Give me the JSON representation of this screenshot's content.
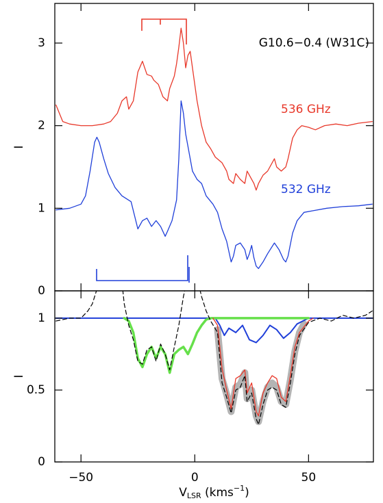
{
  "chart_data": [
    {
      "type": "line",
      "ylabel": "I",
      "annotation": "G10.6−0.4 (W31C)",
      "xlim": [
        -61.5,
        78.5
      ],
      "ylim": [
        0,
        3.48
      ],
      "xticks": [
        -50,
        0,
        50
      ],
      "yticks": [
        0,
        1,
        2,
        3
      ],
      "series": [
        {
          "name": "536 GHz",
          "color": "#e8382a",
          "x": [
            -61,
            -58,
            -55,
            -50,
            -45,
            -40,
            -37,
            -34,
            -32,
            -30,
            -29,
            -27,
            -25,
            -23,
            -21,
            -19,
            -18,
            -16,
            -14,
            -12,
            -11,
            -9,
            -8,
            -7,
            -6,
            -5,
            -4,
            -3,
            -2,
            -1,
            1,
            3,
            5,
            7,
            9,
            12,
            14,
            15,
            17,
            18,
            20,
            22,
            23,
            25,
            26,
            27,
            28,
            30,
            32,
            34,
            35,
            36,
            38,
            40,
            41,
            43,
            45,
            47,
            50,
            53,
            57,
            62,
            67,
            72,
            78
          ],
          "values": [
            2.25,
            2.05,
            2.02,
            2.0,
            2.0,
            2.02,
            2.05,
            2.15,
            2.3,
            2.35,
            2.2,
            2.3,
            2.65,
            2.78,
            2.62,
            2.6,
            2.55,
            2.5,
            2.35,
            2.3,
            2.45,
            2.6,
            2.75,
            2.95,
            3.18,
            3.0,
            2.7,
            2.85,
            2.9,
            2.7,
            2.3,
            2.0,
            1.8,
            1.72,
            1.62,
            1.55,
            1.45,
            1.35,
            1.3,
            1.42,
            1.35,
            1.3,
            1.45,
            1.35,
            1.3,
            1.22,
            1.3,
            1.4,
            1.45,
            1.55,
            1.6,
            1.5,
            1.45,
            1.5,
            1.6,
            1.85,
            1.95,
            2.0,
            1.98,
            1.95,
            2.0,
            2.02,
            2.0,
            2.03,
            2.05
          ]
        },
        {
          "name": "532 GHz",
          "color": "#1f3fd9",
          "x": [
            -61,
            -55,
            -50,
            -48,
            -46,
            -44,
            -43,
            -42,
            -40,
            -38,
            -35,
            -32,
            -28,
            -25,
            -23,
            -21,
            -19,
            -17,
            -15,
            -13,
            -12,
            -10,
            -8,
            -7,
            -6,
            -5,
            -4,
            -3,
            -2,
            -1,
            1,
            3,
            5,
            8,
            10,
            12,
            14,
            16,
            17,
            18,
            20,
            22,
            23,
            24,
            25,
            26,
            27,
            28,
            30,
            32,
            35,
            37,
            39,
            40,
            41,
            43,
            45,
            48,
            52,
            58,
            65,
            72,
            78
          ],
          "values": [
            0.98,
            1.0,
            1.05,
            1.15,
            1.45,
            1.8,
            1.86,
            1.8,
            1.6,
            1.42,
            1.25,
            1.15,
            1.08,
            0.75,
            0.85,
            0.88,
            0.78,
            0.85,
            0.78,
            0.66,
            0.72,
            0.85,
            1.1,
            1.6,
            2.3,
            2.15,
            1.9,
            1.75,
            1.6,
            1.45,
            1.35,
            1.3,
            1.15,
            1.05,
            0.95,
            0.75,
            0.6,
            0.35,
            0.42,
            0.55,
            0.58,
            0.5,
            0.38,
            0.45,
            0.55,
            0.4,
            0.3,
            0.27,
            0.35,
            0.45,
            0.58,
            0.5,
            0.38,
            0.35,
            0.42,
            0.7,
            0.85,
            0.95,
            0.97,
            1.0,
            1.02,
            1.03,
            1.05
          ]
        }
      ]
    },
    {
      "type": "line",
      "ylabel": "I",
      "xlabel_parts": [
        "V",
        "LSR",
        " (kms",
        "−1",
        ")"
      ],
      "xlim": [
        -61.5,
        78.5
      ],
      "ylim": [
        0,
        1.19
      ],
      "xticks": [
        {
          "value": -50,
          "label": "−50"
        },
        0,
        50
      ],
      "yticks": [
        0,
        0.5,
        1
      ],
      "series": [
        {
          "color": "#b4b4b4",
          "linewidth": 10,
          "x": [
            10,
            12,
            14,
            16,
            18,
            20,
            22,
            23,
            25,
            27,
            28,
            30,
            32,
            34,
            36,
            38,
            40,
            42,
            44,
            46,
            48
          ],
          "values": [
            0.92,
            0.58,
            0.47,
            0.35,
            0.52,
            0.54,
            0.62,
            0.44,
            0.5,
            0.32,
            0.28,
            0.42,
            0.52,
            0.55,
            0.52,
            0.42,
            0.4,
            0.57,
            0.77,
            0.9,
            0.96
          ]
        },
        {
          "color": "#1f3fd9",
          "linewidth": 2,
          "x": [
            -61,
            -10,
            9,
            11,
            13,
            15,
            18,
            21,
            24,
            27,
            30,
            33,
            36,
            39,
            42,
            45,
            50,
            60,
            78
          ],
          "values": [
            1,
            1,
            1,
            0.95,
            0.88,
            0.93,
            0.9,
            0.95,
            0.85,
            0.83,
            0.88,
            0.95,
            0.92,
            0.86,
            0.9,
            0.96,
            1,
            1,
            1
          ]
        },
        {
          "color": "#66e04a",
          "linewidth": 3.5,
          "x": [
            -31,
            -29,
            -27,
            -25,
            -23,
            -21,
            -19,
            -17,
            -15,
            -13,
            -11,
            -9,
            -7,
            -5,
            -3,
            -1,
            1,
            3,
            5,
            7,
            50
          ],
          "values": [
            1,
            0.98,
            0.9,
            0.72,
            0.66,
            0.75,
            0.8,
            0.72,
            0.8,
            0.75,
            0.62,
            0.75,
            0.78,
            0.8,
            0.75,
            0.82,
            0.9,
            0.95,
            0.99,
            1,
            1
          ]
        },
        {
          "color": "#e8382a",
          "linewidth": 1.3,
          "x": [
            8,
            10,
            12,
            14,
            16,
            18,
            20,
            22,
            23,
            25,
            27,
            28,
            30,
            32,
            34,
            36,
            38,
            40,
            42,
            44,
            46,
            50,
            52
          ],
          "values": [
            1,
            0.95,
            0.65,
            0.5,
            0.37,
            0.58,
            0.6,
            0.64,
            0.48,
            0.55,
            0.35,
            0.32,
            0.48,
            0.55,
            0.6,
            0.58,
            0.45,
            0.42,
            0.6,
            0.8,
            0.9,
            0.98,
            1
          ]
        },
        {
          "color": "#000000",
          "linewidth": 1.2,
          "linestyle": "dashed",
          "x": [
            -61,
            -55,
            -50,
            -47,
            -45,
            -43,
            -40,
            -35,
            -32,
            -31,
            -29,
            -27,
            -25,
            -23,
            -21,
            -19,
            -17,
            -15,
            -13,
            -11,
            -9,
            -7,
            -5,
            -4,
            0,
            3,
            5,
            7,
            10,
            12,
            14,
            16,
            18,
            20,
            22,
            23,
            25,
            27,
            28,
            30,
            32,
            34,
            36,
            38,
            40,
            42,
            44,
            46,
            50,
            55,
            60,
            65,
            70,
            75,
            78
          ],
          "values": [
            0.98,
            1,
            1,
            1.05,
            1.1,
            1.2,
            1.35,
            1.35,
            1.25,
            1.1,
            0.95,
            0.85,
            0.7,
            0.68,
            0.78,
            0.8,
            0.7,
            0.82,
            0.75,
            0.64,
            0.8,
            0.95,
            1.15,
            1.22,
            1.35,
            1.15,
            1.05,
            0.98,
            0.9,
            0.55,
            0.45,
            0.34,
            0.5,
            0.52,
            0.6,
            0.42,
            0.48,
            0.3,
            0.26,
            0.4,
            0.5,
            0.52,
            0.5,
            0.4,
            0.38,
            0.55,
            0.75,
            0.88,
            0.97,
            1,
            0.98,
            1.02,
            1,
            1.02,
            1.05
          ]
        }
      ]
    }
  ]
}
